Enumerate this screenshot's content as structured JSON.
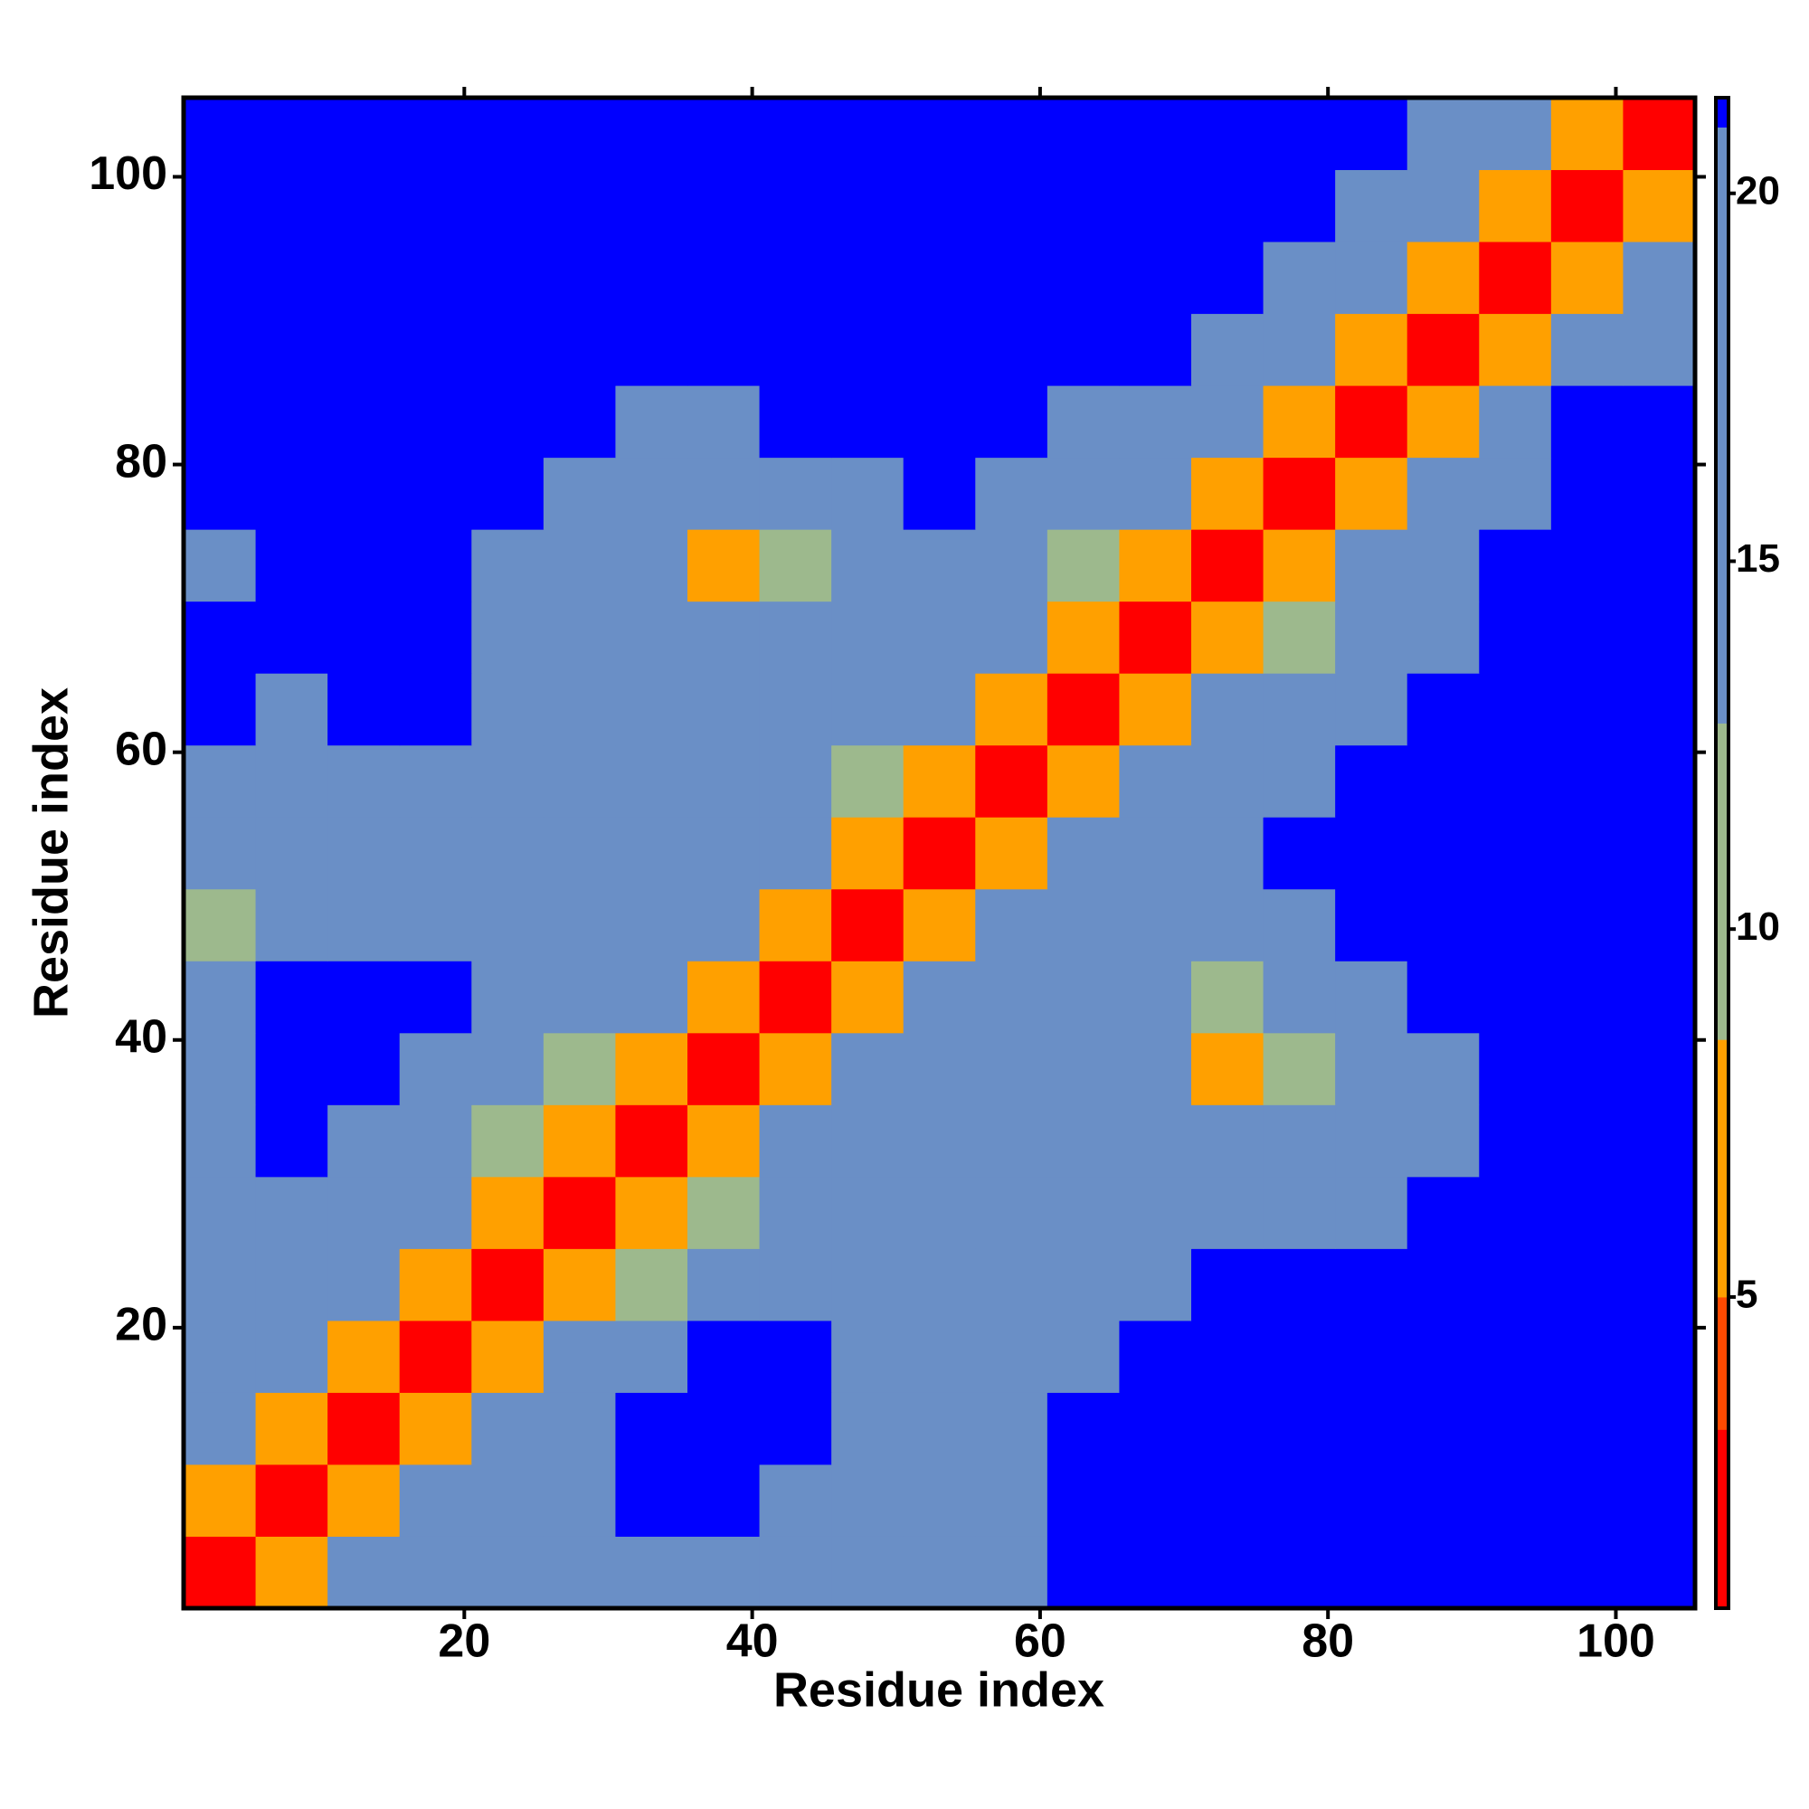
{
  "chart_data": {
    "type": "heatmap",
    "xlabel": "Residue index",
    "ylabel": "Residue index",
    "x_bins": [
      0.5,
      5.5,
      10.5,
      15.5,
      20.5,
      25.5,
      30.5,
      35.5,
      40.5,
      45.5,
      50.5,
      55.5,
      60.5,
      65.5,
      70.5,
      75.5,
      80.5,
      85.5,
      90.5,
      95.5,
      100.5,
      105.5
    ],
    "y_bins": [
      0.5,
      5.5,
      10.5,
      15.5,
      20.5,
      25.5,
      30.5,
      35.5,
      40.5,
      45.5,
      50.5,
      55.5,
      60.5,
      65.5,
      70.5,
      75.5,
      80.5,
      85.5,
      90.5,
      95.5,
      100.5,
      105.5
    ],
    "z": [
      [
        3,
        8,
        13,
        15,
        16,
        17,
        18,
        19,
        15,
        13,
        15,
        18,
        21,
        21,
        21,
        21,
        21,
        21,
        21,
        21,
        21
      ],
      [
        8,
        3,
        8,
        13,
        15,
        17,
        21,
        21,
        17,
        14,
        16,
        19,
        21,
        21,
        21,
        21,
        21,
        21,
        21,
        21,
        21
      ],
      [
        13,
        8,
        3,
        8,
        13,
        16,
        21,
        21,
        21,
        17,
        17,
        19,
        21,
        21,
        21,
        21,
        21,
        21,
        21,
        21,
        21
      ],
      [
        15,
        13,
        8,
        3,
        8,
        13,
        17,
        21,
        21,
        16,
        17,
        18,
        20,
        21,
        21,
        21,
        21,
        21,
        21,
        21,
        21
      ],
      [
        16,
        15,
        13,
        8,
        3,
        8,
        12,
        16,
        17,
        15,
        16,
        16,
        17,
        19,
        21,
        21,
        21,
        21,
        21,
        21,
        21
      ],
      [
        16,
        17,
        16,
        13,
        8,
        3,
        8,
        12,
        14,
        14,
        15,
        14,
        14,
        15,
        16,
        16,
        17,
        21,
        21,
        21,
        21
      ],
      [
        17,
        21,
        19,
        17,
        12,
        8,
        3,
        8,
        13,
        14,
        15,
        15,
        14,
        14,
        14,
        14,
        15,
        16,
        21,
        21,
        21
      ],
      [
        16,
        21,
        21,
        20,
        15,
        12,
        8,
        3,
        8,
        14,
        15,
        15,
        15,
        14,
        8,
        12,
        15,
        18,
        21,
        21,
        21
      ],
      [
        16,
        21,
        21,
        21,
        16,
        14,
        14,
        8,
        3,
        8,
        13,
        14,
        15,
        14,
        11,
        14,
        19,
        21,
        21,
        21,
        21
      ],
      [
        12,
        15,
        17,
        17,
        15,
        14,
        14,
        13,
        8,
        3,
        8,
        13,
        14,
        15,
        15,
        16,
        21,
        21,
        21,
        21,
        21
      ],
      [
        15,
        16,
        17,
        16,
        16,
        15,
        15,
        14,
        13,
        8,
        3,
        8,
        13,
        15,
        16,
        21,
        21,
        21,
        21,
        21,
        21
      ],
      [
        17,
        17,
        18,
        19,
        16,
        15,
        15,
        14,
        14,
        12,
        8,
        3,
        8,
        13,
        15,
        17,
        21,
        21,
        21,
        21,
        21
      ],
      [
        21,
        20,
        21,
        21,
        16,
        14,
        13,
        14,
        14,
        14,
        13,
        8,
        3,
        8,
        13,
        15,
        17,
        21,
        21,
        21,
        21
      ],
      [
        21,
        21,
        21,
        21,
        20,
        16,
        15,
        14,
        14,
        14,
        15,
        13,
        8,
        3,
        8,
        11,
        14,
        17,
        21,
        21,
        21
      ],
      [
        19,
        21,
        21,
        21,
        20,
        16,
        14,
        8,
        12,
        15,
        15,
        14,
        12,
        8,
        3,
        8,
        14,
        16,
        21,
        21,
        21
      ],
      [
        21,
        21,
        21,
        21,
        21,
        17,
        15,
        14,
        16,
        18,
        21,
        16,
        14,
        13,
        8,
        3,
        8,
        13,
        17,
        21,
        21
      ],
      [
        21,
        21,
        21,
        21,
        21,
        21,
        18,
        17,
        21,
        21,
        21,
        21,
        17,
        16,
        14,
        8,
        3,
        8,
        14,
        21,
        21
      ],
      [
        21,
        21,
        21,
        21,
        21,
        21,
        21,
        21,
        21,
        21,
        21,
        21,
        21,
        21,
        19,
        16,
        8,
        3,
        8,
        15,
        18
      ],
      [
        21,
        21,
        21,
        21,
        21,
        21,
        21,
        21,
        21,
        21,
        21,
        21,
        21,
        21,
        21,
        18,
        14,
        8,
        3,
        8,
        14
      ],
      [
        21,
        21,
        21,
        21,
        21,
        21,
        21,
        21,
        21,
        21,
        21,
        21,
        21,
        21,
        21,
        21,
        19,
        16,
        8,
        3,
        8
      ],
      [
        21,
        21,
        21,
        21,
        21,
        21,
        21,
        21,
        21,
        21,
        21,
        21,
        21,
        21,
        21,
        21,
        21,
        17,
        15,
        8,
        3
      ]
    ],
    "xlim": [
      0.5,
      105.5
    ],
    "xticks": [
      20,
      40,
      60,
      80,
      100
    ],
    "ylim": [
      0.5,
      105.5
    ],
    "yticks": [
      20,
      40,
      60,
      80,
      100
    ],
    "zlim": [
      0.77,
      21.3
    ],
    "zticks": [
      5,
      10,
      15,
      20
    ],
    "colorscale": [
      [
        3.2,
        "#ff0000"
      ],
      [
        5,
        "#ff4a00"
      ],
      [
        8.5,
        "#ffa000"
      ],
      [
        12.8,
        "#9db98d"
      ],
      [
        20.9,
        "#6a8fc6"
      ],
      [
        21.3,
        "#0000ff"
      ]
    ]
  }
}
